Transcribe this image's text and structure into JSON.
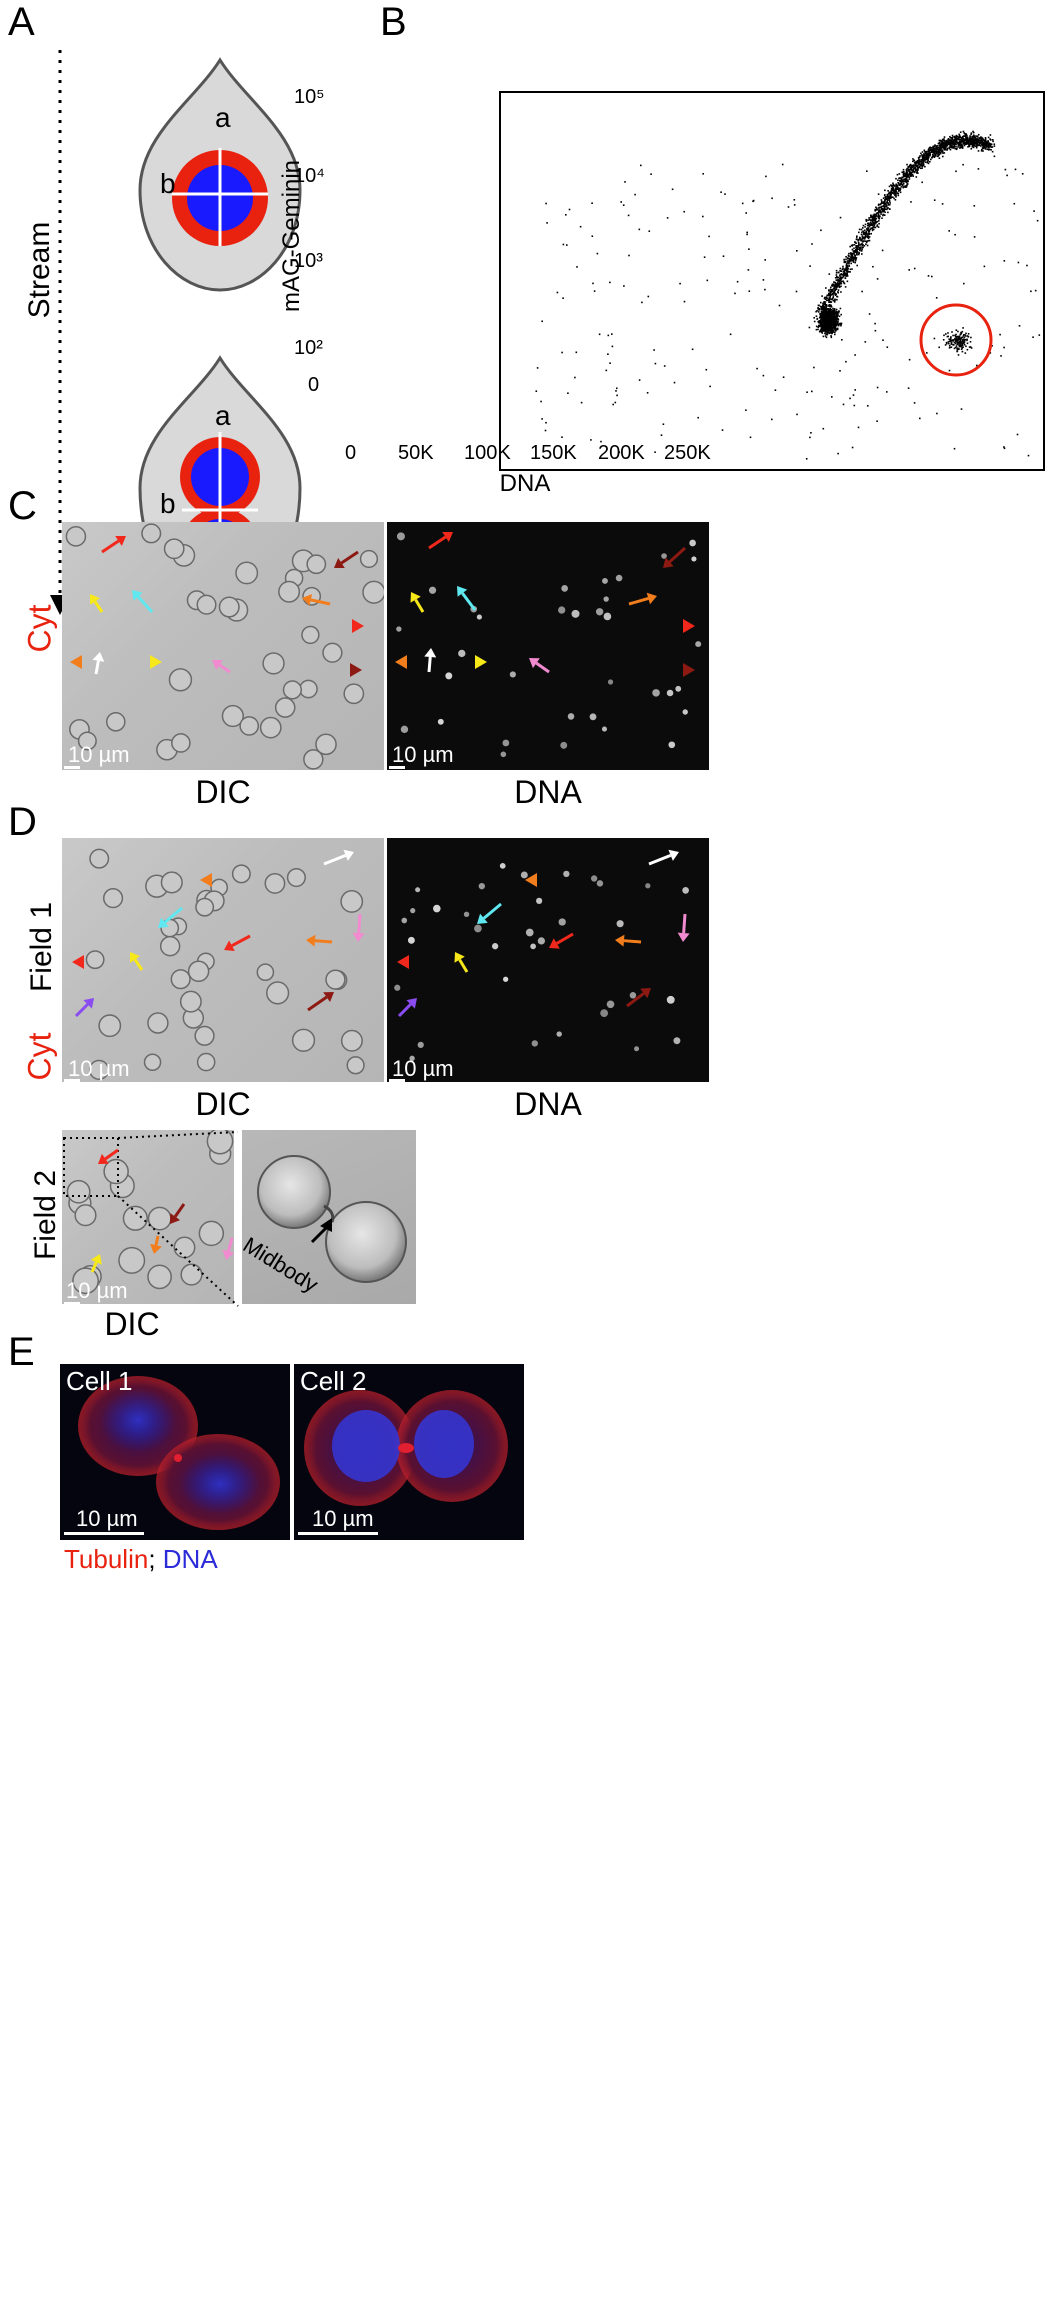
{
  "panels": {
    "A": {
      "label": "A",
      "stream_label": "Stream",
      "cell_top": {
        "a": "a",
        "b": "b"
      },
      "cell_bottom": {
        "a": "a",
        "b": "b"
      }
    },
    "B": {
      "label": "B",
      "xlabel": "DNA",
      "ylabel": "mAG-Geminin",
      "xticks": [
        "0",
        "50K",
        "100K",
        "150K",
        "200K",
        "250K"
      ],
      "yticks": [
        "0",
        "10²",
        "10³",
        "10⁴",
        "10⁵"
      ]
    },
    "C": {
      "label": "C",
      "side_label": "Cyt",
      "left_caption": "DIC",
      "right_caption": "DNA",
      "scale_left": "10 µm",
      "scale_right": "10 µm"
    },
    "D": {
      "label": "D",
      "field1_label": "Field 1",
      "side_label": "Cyt",
      "left_caption": "DIC",
      "right_caption": "DNA",
      "scale_left": "10 µm",
      "scale_right": "10 µm",
      "field2_label": "Field 2",
      "field2_caption": "DIC",
      "field2_scale": "10 µm",
      "midbody_label": "Midbody"
    },
    "E": {
      "label": "E",
      "cell1_label": "Cell 1",
      "cell2_label": "Cell 2",
      "scale1": "10 µm",
      "scale2": "10 µm",
      "legend_tubulin": "Tubulin",
      "legend_sep": "; ",
      "legend_dna": "DNA"
    }
  },
  "colors": {
    "red": "#e8220f",
    "blue": "#1a1aff",
    "gray_cell": "#d9d9d9",
    "gate_circle": "#e8220f",
    "arrow_red": "#f2281c",
    "arrow_yellow": "#f7e81a",
    "arrow_cyan": "#5fe8f0",
    "arrow_orange": "#f27d1c",
    "arrow_pink": "#f28ad0",
    "arrow_darkred": "#8c1a12",
    "arrow_white": "#ffffff",
    "arrow_purple": "#8a4cf0",
    "tubulin_text": "#e8220f",
    "dna_text": "#2b2bd9"
  }
}
